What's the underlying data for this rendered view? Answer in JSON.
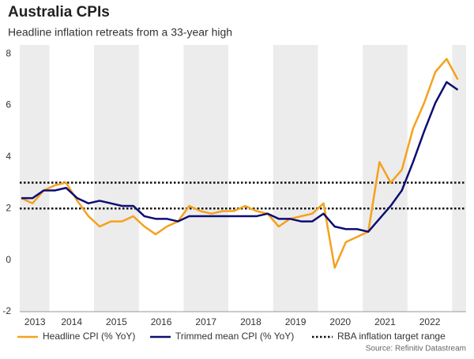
{
  "chart_data": {
    "type": "line",
    "title": "Australia CPIs",
    "subtitle": "Headline inflation retreats from a 33-year high",
    "source": "Source: Refinitiv Datastream",
    "x": [
      2013.375,
      2013.625,
      2013.875,
      2014.125,
      2014.375,
      2014.625,
      2014.875,
      2015.125,
      2015.375,
      2015.625,
      2015.875,
      2016.125,
      2016.375,
      2016.625,
      2016.875,
      2017.125,
      2017.375,
      2017.625,
      2017.875,
      2018.125,
      2018.375,
      2018.625,
      2018.875,
      2019.125,
      2019.375,
      2019.625,
      2019.875,
      2020.125,
      2020.375,
      2020.625,
      2020.875,
      2021.125,
      2021.375,
      2021.625,
      2021.875,
      2022.125,
      2022.375,
      2022.625,
      2022.875,
      2023.125
    ],
    "series": [
      {
        "name": "Headline CPI (% YoY)",
        "color": "#f5a11c",
        "values": [
          2.4,
          2.2,
          2.7,
          2.9,
          3.0,
          2.3,
          1.7,
          1.3,
          1.5,
          1.5,
          1.7,
          1.3,
          1.0,
          1.3,
          1.5,
          2.1,
          1.9,
          1.8,
          1.9,
          1.9,
          2.1,
          1.9,
          1.8,
          1.3,
          1.6,
          1.7,
          1.8,
          2.2,
          -0.3,
          0.7,
          0.9,
          1.1,
          3.8,
          3.0,
          3.5,
          5.1,
          6.1,
          7.3,
          7.8,
          7.0
        ]
      },
      {
        "name": "Trimmed mean CPI (% YoY)",
        "color": "#0d0d73",
        "values": [
          2.4,
          2.4,
          2.7,
          2.7,
          2.8,
          2.4,
          2.2,
          2.3,
          2.2,
          2.1,
          2.1,
          1.7,
          1.6,
          1.6,
          1.5,
          1.7,
          1.7,
          1.7,
          1.7,
          1.7,
          1.7,
          1.7,
          1.8,
          1.6,
          1.6,
          1.5,
          1.5,
          1.8,
          1.3,
          1.2,
          1.2,
          1.1,
          1.6,
          2.1,
          2.7,
          3.8,
          5.0,
          6.1,
          6.9,
          6.6
        ]
      }
    ],
    "target_range": {
      "name": "RBA inflation target range",
      "color": "#111111",
      "values": [
        2,
        3
      ]
    },
    "shaded_years": [
      2013,
      2015,
      2017,
      2019,
      2021,
      2023
    ],
    "xlim": [
      2013.34,
      2023.31
    ],
    "xticks": [
      {
        "value": 2013.68,
        "label": "2013"
      },
      {
        "value": 2014.5,
        "label": "2014"
      },
      {
        "value": 2015.5,
        "label": "2015"
      },
      {
        "value": 2016.5,
        "label": "2016"
      },
      {
        "value": 2017.5,
        "label": "2017"
      },
      {
        "value": 2018.5,
        "label": "2018"
      },
      {
        "value": 2019.5,
        "label": "2019"
      },
      {
        "value": 2020.5,
        "label": "2020"
      },
      {
        "value": 2021.5,
        "label": "2021"
      },
      {
        "value": 2022.5,
        "label": "2022"
      }
    ],
    "ylim": [
      -2,
      8.34
    ],
    "yticks": [
      -2,
      0,
      2,
      4,
      6,
      8
    ],
    "grid": false,
    "legend": "bottom"
  }
}
